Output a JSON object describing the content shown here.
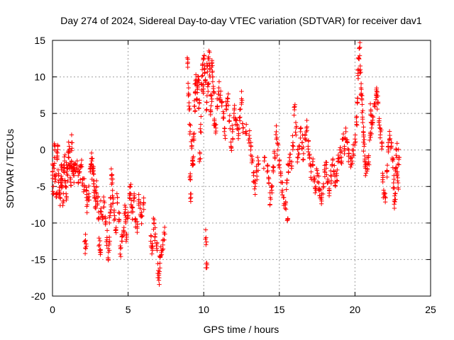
{
  "chart_data": {
    "type": "scatter",
    "title": "Day 274 of 2024, Sidereal Day-to-day VTEC variation (SDTVAR) for receiver dav1",
    "xlabel": "GPS time / hours",
    "ylabel": "SDTVAR / TECUs",
    "xlim": [
      0,
      25
    ],
    "ylim": [
      -20,
      15
    ],
    "xticks": [
      0,
      5,
      10,
      15,
      20,
      25
    ],
    "yticks": [
      -20,
      -15,
      -10,
      -5,
      0,
      5,
      10,
      15
    ],
    "grid": true,
    "marker": "+",
    "color": "#ff0000",
    "series": [
      {
        "name": "SDTVAR",
        "points": [
          [
            0.0,
            -3.0
          ],
          [
            0.05,
            -5.0
          ],
          [
            0.1,
            -2.5
          ],
          [
            0.15,
            0.0
          ],
          [
            0.2,
            -4.0
          ],
          [
            0.25,
            -6.0
          ],
          [
            0.3,
            -1.0
          ],
          [
            0.35,
            0.5
          ],
          [
            0.4,
            -3.5
          ],
          [
            0.45,
            -5.5
          ],
          [
            0.5,
            -6.5
          ],
          [
            0.55,
            -4.0
          ],
          [
            0.6,
            -2.0
          ],
          [
            0.65,
            -5.0
          ],
          [
            0.7,
            -7.0
          ],
          [
            0.75,
            -3.0
          ],
          [
            0.8,
            -1.5
          ],
          [
            0.85,
            -4.5
          ],
          [
            0.9,
            -6.0
          ],
          [
            0.95,
            -2.5
          ],
          [
            1.0,
            -3.5
          ],
          [
            1.05,
            -1.0
          ],
          [
            1.1,
            0.5
          ],
          [
            1.15,
            -2.0
          ],
          [
            1.2,
            -4.0
          ],
          [
            1.25,
            -1.5
          ],
          [
            1.3,
            1.0
          ],
          [
            1.35,
            -2.5
          ],
          [
            1.4,
            -3.5
          ],
          [
            1.45,
            -2.0
          ],
          [
            1.5,
            -3.0
          ],
          [
            1.6,
            -2.5
          ],
          [
            1.7,
            -3.5
          ],
          [
            1.8,
            -3.0
          ],
          [
            1.9,
            -2.0
          ],
          [
            2.0,
            -4.0
          ],
          [
            2.1,
            -5.0
          ],
          [
            2.15,
            -12.5
          ],
          [
            2.2,
            -13.5
          ],
          [
            2.25,
            -5.5
          ],
          [
            2.3,
            -7.5
          ],
          [
            2.4,
            -6.0
          ],
          [
            2.5,
            -3.0
          ],
          [
            2.55,
            -2.0
          ],
          [
            2.6,
            -1.5
          ],
          [
            2.65,
            -3.0
          ],
          [
            2.7,
            -2.5
          ],
          [
            2.75,
            -5.0
          ],
          [
            2.8,
            -6.5
          ],
          [
            2.85,
            -7.0
          ],
          [
            2.9,
            -5.0
          ],
          [
            3.0,
            -6.5
          ],
          [
            3.05,
            -8.5
          ],
          [
            3.1,
            -13.0
          ],
          [
            3.15,
            -14.0
          ],
          [
            3.2,
            -8.0
          ],
          [
            3.3,
            -9.5
          ],
          [
            3.4,
            -7.0
          ],
          [
            3.5,
            -10.0
          ],
          [
            3.6,
            -12.0
          ],
          [
            3.7,
            -14.0
          ],
          [
            3.75,
            -13.0
          ],
          [
            3.8,
            -9.0
          ],
          [
            3.85,
            -7.5
          ],
          [
            3.9,
            -3.5
          ],
          [
            3.95,
            -4.5
          ],
          [
            4.0,
            -6.5
          ],
          [
            4.1,
            -9.0
          ],
          [
            4.2,
            -11.0
          ],
          [
            4.3,
            -6.5
          ],
          [
            4.4,
            -9.5
          ],
          [
            4.5,
            -13.5
          ],
          [
            4.6,
            -12.5
          ],
          [
            4.7,
            -11.0
          ],
          [
            4.8,
            -8.5
          ],
          [
            4.85,
            -9.5
          ],
          [
            4.9,
            -11.5
          ],
          [
            5.0,
            -9.0
          ],
          [
            5.1,
            -6.0
          ],
          [
            5.15,
            -5.0
          ],
          [
            5.2,
            -7.5
          ],
          [
            5.3,
            -8.5
          ],
          [
            5.4,
            -6.0
          ],
          [
            5.5,
            -9.5
          ],
          [
            5.6,
            -10.5
          ],
          [
            5.7,
            -7.0
          ],
          [
            5.8,
            -8.0
          ],
          [
            5.9,
            -9.0
          ],
          [
            6.0,
            -7.5
          ],
          [
            6.5,
            -12.5
          ],
          [
            6.6,
            -13.5
          ],
          [
            6.7,
            -10.0
          ],
          [
            6.8,
            -11.5
          ],
          [
            6.9,
            -13.5
          ],
          [
            7.0,
            -16.5
          ],
          [
            7.05,
            -17.5
          ],
          [
            7.1,
            -15.5
          ],
          [
            7.2,
            -14.0
          ],
          [
            7.3,
            -13.0
          ],
          [
            7.4,
            -11.5
          ],
          [
            8.95,
            12.0
          ],
          [
            9.0,
            8.5
          ],
          [
            9.05,
            5.5
          ],
          [
            9.1,
            2.5
          ],
          [
            9.1,
            -4.0
          ],
          [
            9.15,
            -6.5
          ],
          [
            9.2,
            0.5
          ],
          [
            9.25,
            -1.5
          ],
          [
            9.3,
            -2.0
          ],
          [
            9.35,
            1.5
          ],
          [
            9.4,
            6.0
          ],
          [
            9.45,
            8.0
          ],
          [
            9.5,
            9.5
          ],
          [
            9.55,
            7.0
          ],
          [
            9.6,
            8.5
          ],
          [
            9.65,
            10.0
          ],
          [
            9.7,
            6.5
          ],
          [
            9.75,
            -0.5
          ],
          [
            9.8,
            3.5
          ],
          [
            9.85,
            9.0
          ],
          [
            9.9,
            11.0
          ],
          [
            9.95,
            8.0
          ],
          [
            10.0,
            12.5
          ],
          [
            10.05,
            11.0
          ],
          [
            10.1,
            9.5
          ],
          [
            10.15,
            -12.0
          ],
          [
            10.18,
            -15.5
          ],
          [
            10.2,
            6.5
          ],
          [
            10.25,
            11.5
          ],
          [
            10.3,
            9.0
          ],
          [
            10.35,
            12.5
          ],
          [
            10.4,
            11.0
          ],
          [
            10.45,
            5.5
          ],
          [
            10.5,
            7.5
          ],
          [
            10.55,
            12.0
          ],
          [
            10.6,
            10.0
          ],
          [
            10.65,
            8.0
          ],
          [
            10.7,
            4.0
          ],
          [
            10.8,
            3.0
          ],
          [
            10.9,
            6.0
          ],
          [
            11.0,
            8.5
          ],
          [
            11.1,
            7.5
          ],
          [
            11.2,
            6.5
          ],
          [
            11.3,
            4.5
          ],
          [
            11.4,
            2.0
          ],
          [
            11.5,
            5.5
          ],
          [
            11.6,
            7.0
          ],
          [
            11.7,
            4.0
          ],
          [
            11.8,
            0.5
          ],
          [
            11.9,
            2.5
          ],
          [
            12.0,
            5.0
          ],
          [
            12.1,
            4.0
          ],
          [
            12.2,
            3.5
          ],
          [
            12.3,
            2.0
          ],
          [
            12.4,
            4.5
          ],
          [
            12.5,
            7.0
          ],
          [
            12.6,
            3.0
          ],
          [
            12.8,
            2.5
          ],
          [
            13.0,
            2.0
          ],
          [
            13.1,
            0.0
          ],
          [
            13.2,
            -1.5
          ],
          [
            13.3,
            -3.5
          ],
          [
            13.4,
            -5.0
          ],
          [
            13.5,
            -3.0
          ],
          [
            13.6,
            -2.0
          ],
          [
            14.0,
            -1.5
          ],
          [
            14.2,
            -3.0
          ],
          [
            14.3,
            -4.5
          ],
          [
            14.4,
            -6.5
          ],
          [
            14.5,
            -5.5
          ],
          [
            14.6,
            -3.0
          ],
          [
            14.7,
            -1.0
          ],
          [
            14.8,
            2.5
          ],
          [
            14.9,
            0.0
          ],
          [
            15.0,
            -2.0
          ],
          [
            15.1,
            -3.5
          ],
          [
            15.2,
            -5.5
          ],
          [
            15.3,
            -6.5
          ],
          [
            15.4,
            -7.5
          ],
          [
            15.5,
            -4.5
          ],
          [
            15.55,
            -9.5
          ],
          [
            15.6,
            -3.0
          ],
          [
            15.7,
            -1.5
          ],
          [
            15.8,
            -2.5
          ],
          [
            15.9,
            1.0
          ],
          [
            16.0,
            5.5
          ],
          [
            16.1,
            3.0
          ],
          [
            16.2,
            -1.0
          ],
          [
            16.3,
            0.5
          ],
          [
            16.4,
            2.5
          ],
          [
            16.5,
            1.0
          ],
          [
            16.6,
            -0.5
          ],
          [
            16.7,
            1.5
          ],
          [
            16.8,
            3.0
          ],
          [
            16.9,
            0.5
          ],
          [
            17.0,
            -1.0
          ],
          [
            17.1,
            -3.0
          ],
          [
            17.2,
            -2.0
          ],
          [
            17.3,
            -4.0
          ],
          [
            17.4,
            -5.0
          ],
          [
            17.5,
            -3.5
          ],
          [
            17.6,
            -4.5
          ],
          [
            17.7,
            -5.5
          ],
          [
            17.8,
            -6.5
          ],
          [
            17.9,
            -5.0
          ],
          [
            18.0,
            -3.0
          ],
          [
            18.1,
            -2.5
          ],
          [
            18.2,
            -4.0
          ],
          [
            18.3,
            -5.5
          ],
          [
            18.4,
            -3.5
          ],
          [
            18.5,
            -2.0
          ],
          [
            18.6,
            -3.0
          ],
          [
            18.7,
            -4.5
          ],
          [
            18.8,
            -3.5
          ],
          [
            18.9,
            -1.5
          ],
          [
            19.0,
            0.0
          ],
          [
            19.1,
            -1.0
          ],
          [
            19.2,
            1.5
          ],
          [
            19.3,
            0.5
          ],
          [
            19.4,
            2.5
          ],
          [
            19.5,
            1.0
          ],
          [
            19.6,
            -0.5
          ],
          [
            19.7,
            -2.0
          ],
          [
            19.8,
            -1.0
          ],
          [
            19.9,
            0.0
          ],
          [
            20.0,
            1.5
          ],
          [
            20.1,
            3.5
          ],
          [
            20.15,
            6.5
          ],
          [
            20.2,
            10.5
          ],
          [
            20.25,
            12.5
          ],
          [
            20.3,
            14.0
          ],
          [
            20.35,
            11.5
          ],
          [
            20.4,
            8.5
          ],
          [
            20.45,
            7.0
          ],
          [
            20.5,
            4.5
          ],
          [
            20.55,
            2.5
          ],
          [
            20.6,
            0.5
          ],
          [
            20.65,
            -1.5
          ],
          [
            20.7,
            -2.5
          ],
          [
            20.8,
            -2.0
          ],
          [
            20.9,
            -1.0
          ],
          [
            21.0,
            2.0
          ],
          [
            21.05,
            5.5
          ],
          [
            21.1,
            3.0
          ],
          [
            21.2,
            4.5
          ],
          [
            21.3,
            6.0
          ],
          [
            21.4,
            7.5
          ],
          [
            21.45,
            8.0
          ],
          [
            21.5,
            6.5
          ],
          [
            21.6,
            4.0
          ],
          [
            21.7,
            2.5
          ],
          [
            21.8,
            0.5
          ],
          [
            21.85,
            -3.5
          ],
          [
            21.9,
            -5.5
          ],
          [
            22.0,
            -6.5
          ],
          [
            22.1,
            -3.0
          ],
          [
            22.2,
            0.5
          ],
          [
            22.3,
            2.0
          ],
          [
            22.4,
            1.0
          ],
          [
            22.5,
            -1.5
          ],
          [
            22.55,
            -4.5
          ],
          [
            22.6,
            -7.0
          ],
          [
            22.65,
            -6.0
          ],
          [
            22.7,
            -2.5
          ],
          [
            22.75,
            0.0
          ],
          [
            22.8,
            -3.0
          ],
          [
            22.85,
            -4.5
          ],
          [
            22.9,
            -1.0
          ]
        ]
      }
    ]
  }
}
